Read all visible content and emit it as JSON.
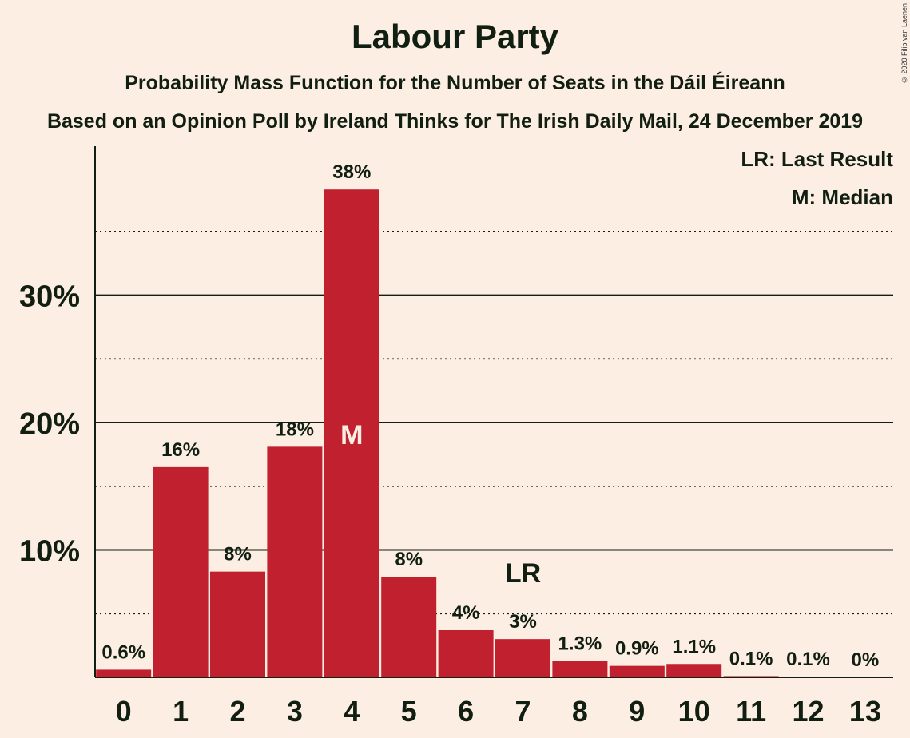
{
  "chart_data": {
    "type": "bar",
    "title": "Labour Party",
    "subtitle": "Probability Mass Function for the Number of Seats in the Dáil Éireann",
    "subtitle2": "Based on an Opinion Poll by Ireland Thinks for The Irish Daily Mail, 24 December 2019",
    "copyright": "© 2020 Filip van Laenen",
    "categories": [
      "0",
      "1",
      "2",
      "3",
      "4",
      "5",
      "6",
      "7",
      "8",
      "9",
      "10",
      "11",
      "12",
      "13"
    ],
    "values": [
      0.6,
      16.5,
      8.3,
      18.1,
      38.3,
      7.9,
      3.7,
      3.0,
      1.3,
      0.9,
      1.05,
      0.1,
      0.05,
      0.0
    ],
    "value_labels": [
      "0.6%",
      "16%",
      "8%",
      "18%",
      "38%",
      "8%",
      "4%",
      "3%",
      "1.3%",
      "0.9%",
      "1.1%",
      "0.1%",
      "0.1%",
      "0%"
    ],
    "ylim": [
      0,
      41.7
    ],
    "yticks_major": [
      10,
      20,
      30
    ],
    "ytick_labels": [
      "10%",
      "20%",
      "30%"
    ],
    "yticks_minor": [
      5,
      15,
      25,
      35
    ],
    "median_index": 4,
    "median_marker": "M",
    "last_result_index": 7,
    "last_result_marker": "LR",
    "legend": [
      "LR: Last Result",
      "M: Median"
    ],
    "bar_color": "#C1202E",
    "background_color": "#FDEEE3",
    "text_color": "#111E12"
  }
}
